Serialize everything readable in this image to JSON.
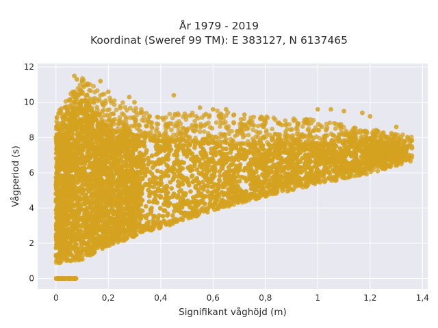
{
  "chart_data": {
    "type": "scatter",
    "title_line1": "År 1979 - 2019",
    "title_line2": "Koordinat (Sweref 99 TM): E 383127, N 6137465",
    "xlabel": "Signifikant våghöjd (m)",
    "ylabel": "Vågperiod (s)",
    "xlim": [
      -0.07,
      1.42
    ],
    "ylim": [
      -0.6,
      12.2
    ],
    "x_ticks": [
      0,
      0.2,
      0.4,
      0.6,
      0.8,
      1,
      1.2,
      1.4
    ],
    "x_tick_labels": [
      "0",
      "0,2",
      "0,4",
      "0,6",
      "0,8",
      "1",
      "1,2",
      "1,4"
    ],
    "y_ticks": [
      0,
      2,
      4,
      6,
      8,
      10,
      12
    ],
    "y_tick_labels": [
      "0",
      "2",
      "4",
      "6",
      "8",
      "10",
      "12"
    ],
    "grid": true,
    "colors": {
      "marker": "#d4a21f",
      "plot_bg": "#e8e8f1",
      "grid": "#ffffff"
    },
    "point_cloud": {
      "hs_range": [
        0,
        1.36
      ],
      "zero_period_hs_range": [
        0,
        0.08
      ],
      "lower_bound": [
        [
          0.0,
          1.2
        ],
        [
          0.1,
          1.4
        ],
        [
          0.2,
          2.2
        ],
        [
          0.4,
          3.2
        ],
        [
          0.6,
          4.2
        ],
        [
          0.8,
          5.0
        ],
        [
          1.0,
          5.7
        ],
        [
          1.2,
          6.3
        ],
        [
          1.36,
          7.0
        ]
      ],
      "upper_bound": [
        [
          0.0,
          9.3
        ],
        [
          0.1,
          11.5
        ],
        [
          0.2,
          10.3
        ],
        [
          0.4,
          9.3
        ],
        [
          0.6,
          9.6
        ],
        [
          0.8,
          9.2
        ],
        [
          1.0,
          9.0
        ],
        [
          1.2,
          8.5
        ],
        [
          1.36,
          8.1
        ]
      ],
      "core_upper": [
        [
          0.0,
          8.3
        ],
        [
          0.1,
          10.2
        ],
        [
          0.2,
          8.5
        ],
        [
          0.4,
          7.8
        ],
        [
          0.6,
          7.7
        ],
        [
          0.8,
          7.6
        ],
        [
          1.0,
          7.6
        ],
        [
          1.2,
          7.8
        ],
        [
          1.36,
          7.4
        ]
      ]
    },
    "sample_points": [
      [
        0.07,
        11.5
      ],
      [
        0.08,
        11.3
      ],
      [
        0.12,
        11.0
      ],
      [
        0.17,
        11.2
      ],
      [
        0.2,
        10.6
      ],
      [
        0.28,
        10.3
      ],
      [
        0.3,
        10.0
      ],
      [
        0.45,
        10.4
      ],
      [
        0.55,
        9.7
      ],
      [
        0.6,
        9.6
      ],
      [
        0.65,
        9.6
      ],
      [
        0.72,
        9.3
      ],
      [
        1.0,
        9.6
      ],
      [
        1.05,
        9.6
      ],
      [
        1.1,
        9.5
      ],
      [
        1.17,
        9.4
      ],
      [
        1.2,
        9.2
      ],
      [
        1.3,
        8.6
      ],
      [
        0.02,
        9.4
      ],
      [
        0.04,
        9.3
      ],
      [
        1.27,
        7.4
      ],
      [
        1.33,
        7.8
      ],
      [
        1.36,
        7.4
      ],
      [
        1.35,
        7.0
      ],
      [
        0.5,
        3.7
      ],
      [
        0.35,
        2.8
      ],
      [
        0.02,
        1.2
      ],
      [
        0.04,
        1.1
      ]
    ]
  }
}
